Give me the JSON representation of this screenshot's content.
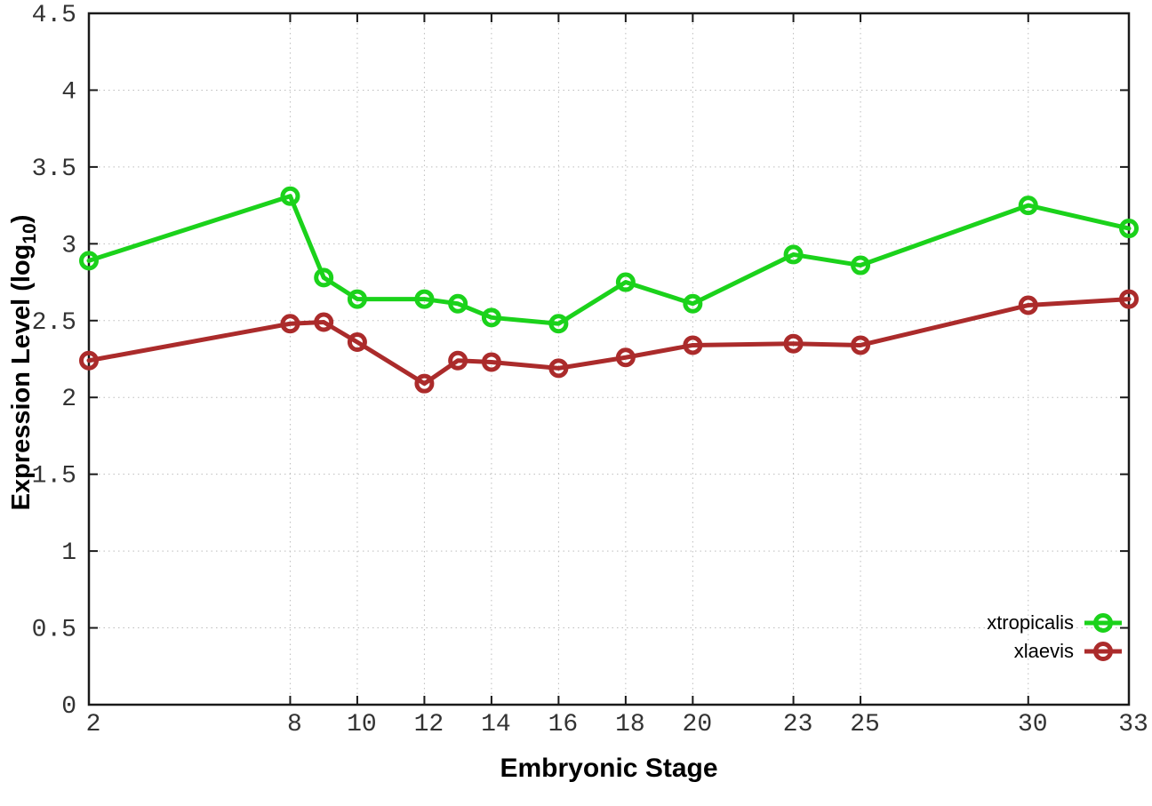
{
  "chart_data": {
    "type": "line",
    "title": "",
    "xlabel": "Embryonic Stage",
    "ylabel": {
      "prefix": "Expression Level (log",
      "sub": "10",
      "suffix": ")"
    },
    "ylabel_plain": "Expression Level (log10)",
    "x": [
      2,
      8,
      9,
      10,
      12,
      13,
      14,
      16,
      18,
      20,
      23,
      25,
      30,
      33
    ],
    "series": [
      {
        "name": "xtropicalis",
        "color": "#1bd21b",
        "marker": "open-circle",
        "values": [
          2.89,
          3.31,
          2.78,
          2.64,
          2.64,
          2.61,
          2.52,
          2.48,
          2.75,
          2.61,
          2.93,
          2.86,
          3.25,
          3.1
        ]
      },
      {
        "name": "xlaevis",
        "color": "#ab2b2b",
        "marker": "open-circle",
        "values": [
          2.24,
          2.48,
          2.49,
          2.36,
          2.09,
          2.24,
          2.23,
          2.19,
          2.26,
          2.34,
          2.35,
          2.34,
          2.6,
          2.64
        ]
      }
    ],
    "xlim": [
      2,
      33
    ],
    "ylim": [
      0,
      4.5
    ],
    "xticks": [
      2,
      8,
      10,
      12,
      14,
      16,
      18,
      20,
      23,
      25,
      30,
      33
    ],
    "yticks": [
      0,
      0.5,
      1,
      1.5,
      2,
      2.5,
      3,
      3.5,
      4,
      4.5
    ],
    "grid": true,
    "grid_style": "dotted",
    "legend_position": "bottom-right",
    "colors": {
      "axis": "#1a1a1a",
      "grid": "#bdbdbd",
      "tick_label": "#333333",
      "background": "#ffffff"
    }
  }
}
